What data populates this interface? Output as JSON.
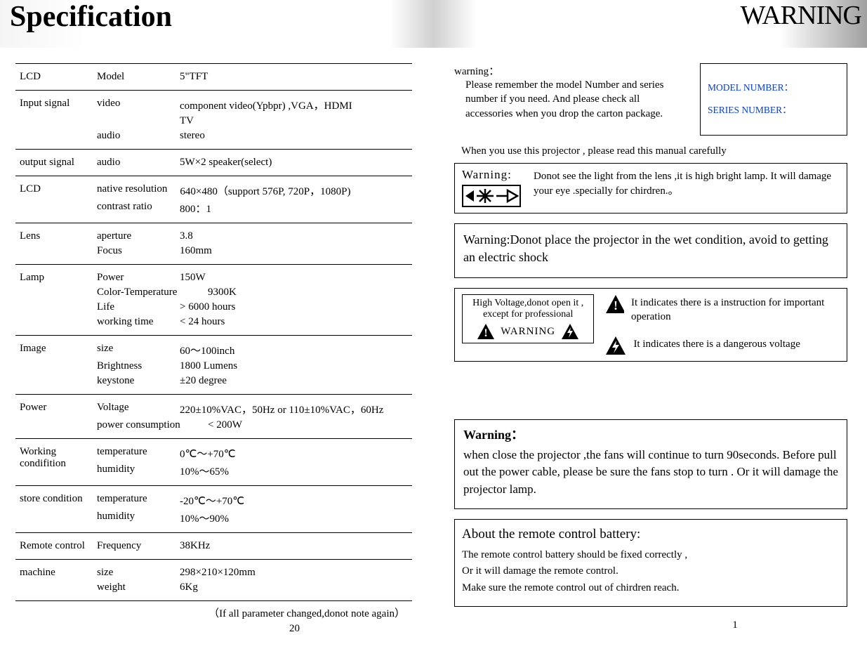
{
  "header": {
    "left": "Specification",
    "right": "WARNING"
  },
  "spec": {
    "rows": [
      {
        "cat": "LCD",
        "attrs": [
          {
            "name": "Model",
            "val": "5\"TFT"
          }
        ]
      },
      {
        "cat": "Input signal",
        "attrs": [
          {
            "name": "video",
            "val": "component video(Ypbpr) ,VGA，HDMI"
          },
          {
            "name": "",
            "val": "TV"
          },
          {
            "name": "audio",
            "val": "stereo"
          }
        ]
      },
      {
        "cat": "output signal",
        "attrs": [
          {
            "name": "audio",
            "val": "5W×2 speaker(select)"
          }
        ]
      },
      {
        "cat": "LCD",
        "attrs": [
          {
            "name": "native resolution",
            "val": "640×480（support 576P, 720P，1080P)"
          },
          {
            "name": "contrast ratio",
            "val": "800：1"
          }
        ]
      },
      {
        "cat": "Lens",
        "attrs": [
          {
            "name": "aperture",
            "val": "3.8"
          },
          {
            "name": "Focus",
            "val": "160mm"
          }
        ]
      },
      {
        "cat": "Lamp",
        "attrs": [
          {
            "name": "Power",
            "val": "150W"
          },
          {
            "name": "Color-Temperature",
            "val": "9300K",
            "wide": true
          },
          {
            "name": "Life",
            "val": "> 6000 hours"
          },
          {
            "name": "working time",
            "val": "< 24 hours"
          }
        ]
      },
      {
        "cat": "Image",
        "attrs": [
          {
            "name": "size",
            "val": "60～100inch"
          },
          {
            "name": "Brightness",
            "val": "1800 Lumens"
          },
          {
            "name": "keystone",
            "val": "±20 degree"
          }
        ]
      },
      {
        "cat": "Power",
        "attrs": [
          {
            "name": "Voltage",
            "val": "220±10%VAC，50Hz  or  110±10%VAC，60Hz"
          },
          {
            "name": "power consumption",
            "val": "< 200W",
            "wide": true
          }
        ]
      },
      {
        "cat": "Working condifition",
        "attrs": [
          {
            "name": "temperature",
            "val": "0℃～+70℃"
          },
          {
            "name": "humidity",
            "val": "10%～65%"
          }
        ]
      },
      {
        "cat": "store condition",
        "attrs": [
          {
            "name": "temperature",
            "val": "-20℃～+70℃"
          },
          {
            "name": "humidity",
            "val": "10%～90%"
          }
        ]
      },
      {
        "cat": "Remote control",
        "attrs": [
          {
            "name": "Frequency",
            "val": "38KHz"
          }
        ]
      },
      {
        "cat": "machine",
        "attrs": [
          {
            "name": "size",
            "val": "298×210×120mm"
          },
          {
            "name": "weight",
            "val": "6Kg"
          }
        ]
      }
    ],
    "footnote": "（If all parameter changed,donot note again）",
    "page_l": "20"
  },
  "warning": {
    "intro_hd": "warning：",
    "intro_body": "Please remember the model Number  and series number if you need. And please check all accessories when you drop the carton package.",
    "model_label": "MODEL NUMBER：",
    "series_label": "SERIES NUMBER：",
    "manual_line": "When you use this projector , please read this manual carefully",
    "box1_label": "Warning:",
    "box1_text": "Donot see the light from the lens ,it is high bright lamp. It will damage your eye .specially for chirdren.。",
    "box2_text": "Warning:Donot place the projector in the wet condition, avoid to getting an electric shock",
    "hv_line1": "High Voltage,donot open it ,",
    "hv_line2": "except for professional",
    "hv_warn": "WARNING",
    "tri1": "It indicates there is a instruction for important operation",
    "tri2": "It indicates there is  a dangerous voltage",
    "box4_hd": "Warning：",
    "box4_body": "when close the projector ,the fans will continue to turn 90seconds. Before pull out the power cable, please be sure the fans stop to turn . Or it will damage the projector lamp.",
    "box5_hd": "About the remote control battery:",
    "box5_l1": "The remote control battery should be fixed correctly ,",
    "box5_l2": "Or it will damage the remote control.",
    "box5_l3": "Make sure the remote control out of chirdren reach.",
    "page_r": "1"
  },
  "colors": {
    "link": "#0a3fbf",
    "border": "#000000"
  }
}
